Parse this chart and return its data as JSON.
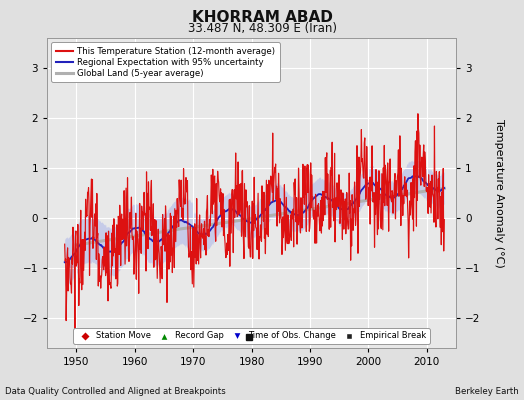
{
  "title": "KHORRAM ABAD",
  "subtitle": "33.487 N, 48.309 E (Iran)",
  "xlabel_left": "Data Quality Controlled and Aligned at Breakpoints",
  "xlabel_right": "Berkeley Earth",
  "ylabel": "Temperature Anomaly (°C)",
  "xlim": [
    1945,
    2015
  ],
  "ylim": [
    -2.6,
    3.6
  ],
  "yticks": [
    -2,
    -1,
    0,
    1,
    2,
    3
  ],
  "xticks": [
    1950,
    1960,
    1970,
    1980,
    1990,
    2000,
    2010
  ],
  "bg_color": "#e0e0e0",
  "plot_bg_color": "#e8e8e8",
  "grid_color": "#ffffff",
  "empirical_break_year": 1979.5,
  "empirical_break_val": -2.38,
  "seed": 42
}
